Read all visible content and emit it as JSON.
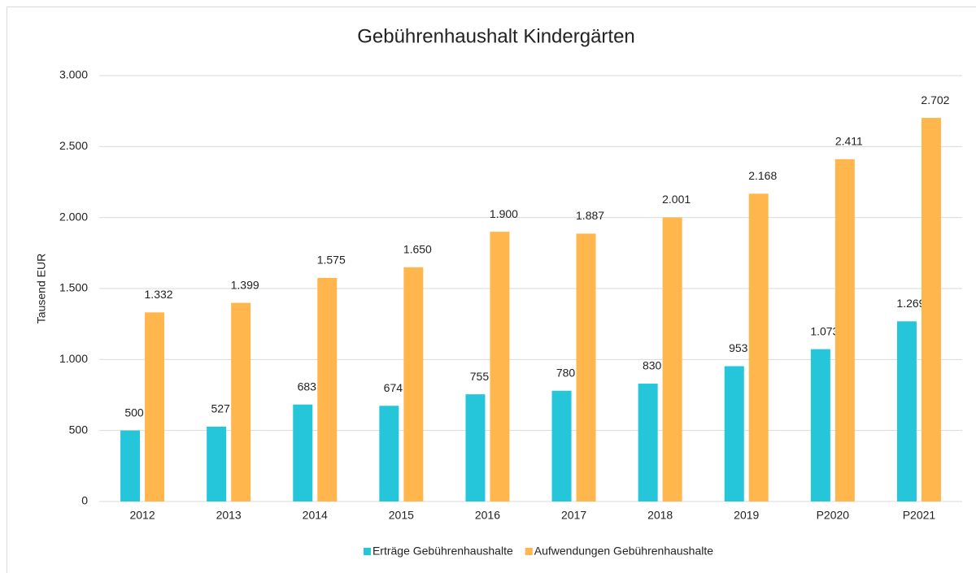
{
  "chart_data": {
    "type": "bar",
    "title": "Gebührenhaushalt Kindergärten",
    "y_label": "Tausend EUR",
    "categories": [
      "2012",
      "2013",
      "2014",
      "2015",
      "2016",
      "2017",
      "2018",
      "2019",
      "P2020",
      "P2021"
    ],
    "series": [
      {
        "name": "Erträge Gebührenhaushalte",
        "color": "#26c6da",
        "values": [
          500,
          527,
          683,
          674,
          755,
          780,
          830,
          953,
          1073,
          1269
        ],
        "value_labels": [
          "500",
          "527",
          "683",
          "674",
          "755",
          "780",
          "830",
          "953",
          "1.073",
          "1.269"
        ]
      },
      {
        "name": "Aufwendungen Gebührenhaushalte",
        "color": "#ffb74d",
        "values": [
          1332,
          1399,
          1575,
          1650,
          1900,
          1887,
          2001,
          2168,
          2411,
          2702
        ],
        "value_labels": [
          "1.332",
          "1.399",
          "1.575",
          "1.650",
          "1.900",
          "1.887",
          "2.001",
          "2.168",
          "2.411",
          "2.702"
        ]
      }
    ],
    "ylim": [
      0,
      3000
    ],
    "yticks": [
      0,
      500,
      {
        "value": 1000,
        "label": "1.000"
      },
      {
        "value": 1500,
        "label": "1.500"
      },
      {
        "value": 2000,
        "label": "2.000"
      },
      {
        "value": 2500,
        "label": "2.500"
      },
      {
        "value": 3000,
        "label": "3.000"
      }
    ],
    "grid": true,
    "legend": "bottom"
  }
}
